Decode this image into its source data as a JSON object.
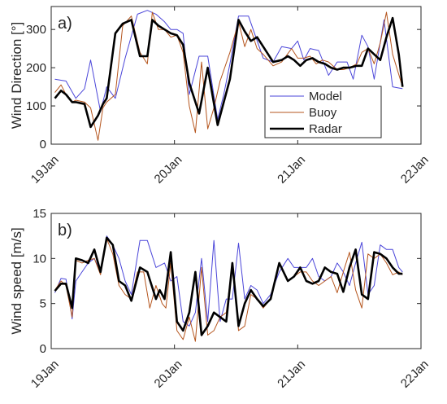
{
  "chart_data": [
    {
      "type": "line",
      "panel_label": "a)",
      "xlabel": "",
      "ylabel": "Wind Direction [°]",
      "ylim": [
        0,
        360
      ],
      "yticks": [
        0,
        100,
        200,
        300
      ],
      "xlim": [
        0,
        3
      ],
      "xticks": [
        {
          "value": 0,
          "label": "19Jan"
        },
        {
          "value": 1,
          "label": "20Jan"
        },
        {
          "value": 2,
          "label": "21Jan"
        },
        {
          "value": 3,
          "label": "22Jan"
        }
      ],
      "grid": false,
      "legend": "bottom-right",
      "series": [
        {
          "name": "Model",
          "color": "#4a45d9",
          "x": [
            0.03,
            0.12,
            0.2,
            0.27,
            0.32,
            0.4,
            0.45,
            0.52,
            0.6,
            0.7,
            0.78,
            0.85,
            0.92,
            0.97,
            1.02,
            1.07,
            1.12,
            1.2,
            1.27,
            1.35,
            1.4,
            1.45,
            1.52,
            1.6,
            1.72,
            1.8,
            1.87,
            1.95,
            2.0,
            2.05,
            2.1,
            2.17,
            2.25,
            2.32,
            2.4,
            2.45,
            2.52,
            2.57,
            2.62,
            2.7,
            2.77,
            2.85
          ],
          "values": [
            170,
            165,
            120,
            145,
            220,
            85,
            150,
            120,
            225,
            340,
            350,
            340,
            320,
            300,
            300,
            290,
            130,
            230,
            230,
            65,
            130,
            210,
            335,
            335,
            225,
            215,
            255,
            250,
            270,
            220,
            250,
            245,
            180,
            215,
            215,
            170,
            285,
            255,
            170,
            325,
            150,
            145
          ]
        },
        {
          "name": "Buoy",
          "color": "#b5551d",
          "x": [
            0.03,
            0.08,
            0.12,
            0.17,
            0.2,
            0.27,
            0.32,
            0.38,
            0.42,
            0.45,
            0.52,
            0.58,
            0.65,
            0.72,
            0.78,
            0.82,
            0.87,
            0.92,
            0.97,
            1.02,
            1.07,
            1.12,
            1.17,
            1.22,
            1.27,
            1.32,
            1.37,
            1.45,
            1.52,
            1.57,
            1.62,
            1.67,
            1.72,
            1.8,
            1.87,
            1.95,
            2.0,
            2.05,
            2.1,
            2.15,
            2.2,
            2.25,
            2.32,
            2.37,
            2.42,
            2.48,
            2.52,
            2.57,
            2.62,
            2.67,
            2.72,
            2.77,
            2.85
          ],
          "values": [
            135,
            155,
            130,
            110,
            115,
            110,
            95,
            10,
            95,
            110,
            130,
            310,
            335,
            240,
            210,
            345,
            300,
            300,
            280,
            285,
            240,
            100,
            30,
            215,
            40,
            95,
            165,
            240,
            320,
            255,
            300,
            250,
            235,
            205,
            215,
            250,
            225,
            225,
            230,
            210,
            220,
            215,
            195,
            195,
            200,
            210,
            240,
            250,
            210,
            265,
            345,
            235,
            150
          ]
        },
        {
          "name": "Radar",
          "color": "#000000",
          "x": [
            0.03,
            0.08,
            0.12,
            0.17,
            0.2,
            0.27,
            0.32,
            0.38,
            0.42,
            0.45,
            0.52,
            0.58,
            0.65,
            0.72,
            0.78,
            0.82,
            0.87,
            0.92,
            0.97,
            1.02,
            1.07,
            1.12,
            1.2,
            1.27,
            1.35,
            1.45,
            1.52,
            1.57,
            1.62,
            1.67,
            1.72,
            1.8,
            1.87,
            1.92,
            1.97,
            2.02,
            2.07,
            2.12,
            2.17,
            2.22,
            2.27,
            2.32,
            2.37,
            2.42,
            2.48,
            2.52,
            2.57,
            2.62,
            2.67,
            2.72,
            2.77,
            2.82,
            2.85
          ],
          "values": [
            120,
            140,
            130,
            110,
            110,
            105,
            45,
            75,
            105,
            120,
            290,
            315,
            325,
            230,
            230,
            325,
            310,
            300,
            290,
            285,
            260,
            160,
            80,
            200,
            50,
            170,
            325,
            295,
            270,
            280,
            255,
            215,
            220,
            230,
            220,
            205,
            220,
            225,
            215,
            210,
            200,
            195,
            200,
            200,
            205,
            205,
            250,
            235,
            220,
            280,
            330,
            235,
            150
          ]
        }
      ]
    },
    {
      "type": "line",
      "panel_label": "b)",
      "xlabel": "",
      "ylabel": "Wind speed [m/s]",
      "ylim": [
        0,
        15
      ],
      "yticks": [
        0,
        5,
        10,
        15
      ],
      "xlim": [
        0,
        3
      ],
      "xticks": [
        {
          "value": 0,
          "label": "19Jan"
        },
        {
          "value": 1,
          "label": "20Jan"
        },
        {
          "value": 2,
          "label": "21Jan"
        },
        {
          "value": 3,
          "label": "22Jan"
        }
      ],
      "grid": false,
      "legend": "none",
      "series": [
        {
          "name": "Model",
          "color": "#4a45d9",
          "x": [
            0.03,
            0.08,
            0.12,
            0.17,
            0.2,
            0.25,
            0.3,
            0.35,
            0.4,
            0.45,
            0.5,
            0.55,
            0.6,
            0.65,
            0.72,
            0.78,
            0.85,
            0.92,
            0.97,
            1.02,
            1.07,
            1.12,
            1.17,
            1.22,
            1.27,
            1.32,
            1.37,
            1.42,
            1.47,
            1.52,
            1.57,
            1.62,
            1.67,
            1.72,
            1.78,
            1.85,
            1.92,
            1.97,
            2.02,
            2.07,
            2.12,
            2.17,
            2.22,
            2.27,
            2.32,
            2.37,
            2.42,
            2.47,
            2.52,
            2.57,
            2.62,
            2.67,
            2.72,
            2.77,
            2.82,
            2.85
          ],
          "values": [
            6.2,
            7.8,
            7.7,
            3.3,
            7.5,
            8.5,
            9.5,
            10,
            8.5,
            12.5,
            11.5,
            10,
            7.5,
            6,
            12,
            12,
            9,
            9.5,
            7.5,
            8,
            3,
            2.5,
            4,
            10,
            3,
            12,
            3,
            5.5,
            5.5,
            11.7,
            5.5,
            7,
            6.5,
            5,
            6,
            8.5,
            10,
            9,
            9,
            9,
            10,
            8,
            7.5,
            8,
            9.5,
            8.5,
            7,
            9.5,
            11.8,
            6,
            7,
            11.5,
            11,
            11,
            9,
            8.5
          ]
        },
        {
          "name": "Buoy",
          "color": "#b5551d",
          "x": [
            0.03,
            0.08,
            0.12,
            0.17,
            0.2,
            0.25,
            0.3,
            0.35,
            0.4,
            0.45,
            0.5,
            0.55,
            0.6,
            0.65,
            0.7,
            0.75,
            0.8,
            0.85,
            0.9,
            0.93,
            0.97,
            1.02,
            1.07,
            1.12,
            1.17,
            1.22,
            1.27,
            1.32,
            1.37,
            1.42,
            1.47,
            1.52,
            1.57,
            1.62,
            1.67,
            1.72,
            1.78,
            1.85,
            1.92,
            1.97,
            2.02,
            2.07,
            2.12,
            2.17,
            2.22,
            2.27,
            2.32,
            2.37,
            2.42,
            2.47,
            2.52,
            2.57,
            2.62,
            2.67,
            2.72,
            2.77,
            2.82,
            2.85
          ],
          "values": [
            6.5,
            7.5,
            7,
            3.5,
            9.8,
            9.5,
            9.8,
            10,
            8.2,
            12.2,
            10.5,
            7,
            6,
            5.5,
            8.5,
            8.5,
            4.5,
            7,
            5,
            4.5,
            9.5,
            2,
            1,
            3.5,
            0.8,
            9,
            1.5,
            2,
            3.5,
            4,
            9.5,
            2,
            2.5,
            6,
            5.5,
            4.5,
            5.5,
            9.5,
            7.5,
            8,
            8.5,
            8.5,
            7.5,
            7,
            7.5,
            8,
            6.2,
            8.5,
            10.7,
            6.5,
            4.5,
            10.5,
            10,
            10.5,
            9.5,
            8.2,
            8.5,
            8.2
          ]
        },
        {
          "name": "Radar",
          "color": "#000000",
          "x": [
            0.03,
            0.08,
            0.12,
            0.17,
            0.2,
            0.25,
            0.3,
            0.35,
            0.4,
            0.45,
            0.5,
            0.55,
            0.6,
            0.65,
            0.72,
            0.78,
            0.85,
            0.88,
            0.92,
            0.97,
            1.02,
            1.07,
            1.12,
            1.17,
            1.22,
            1.27,
            1.32,
            1.37,
            1.42,
            1.47,
            1.52,
            1.57,
            1.62,
            1.67,
            1.72,
            1.78,
            1.85,
            1.92,
            1.97,
            2.02,
            2.07,
            2.12,
            2.17,
            2.22,
            2.27,
            2.32,
            2.37,
            2.42,
            2.47,
            2.52,
            2.57,
            2.62,
            2.67,
            2.72,
            2.77,
            2.82,
            2.85
          ],
          "values": [
            6.4,
            7.2,
            7.2,
            4.5,
            10,
            9.8,
            9.5,
            11,
            8.5,
            12.3,
            11.5,
            7.5,
            7,
            5.3,
            9,
            8.5,
            5.5,
            6.5,
            5.5,
            10.7,
            3,
            2,
            4,
            8.5,
            1.5,
            2.5,
            4,
            3.5,
            3,
            9.5,
            2.5,
            5,
            6.5,
            5.5,
            4.7,
            5.5,
            9.5,
            7.5,
            8,
            9,
            7.5,
            7.2,
            7.5,
            9,
            8.5,
            8.3,
            6.3,
            9,
            11,
            6,
            5.5,
            10.7,
            10.5,
            10,
            9,
            8.3,
            8.3
          ]
        }
      ]
    }
  ]
}
